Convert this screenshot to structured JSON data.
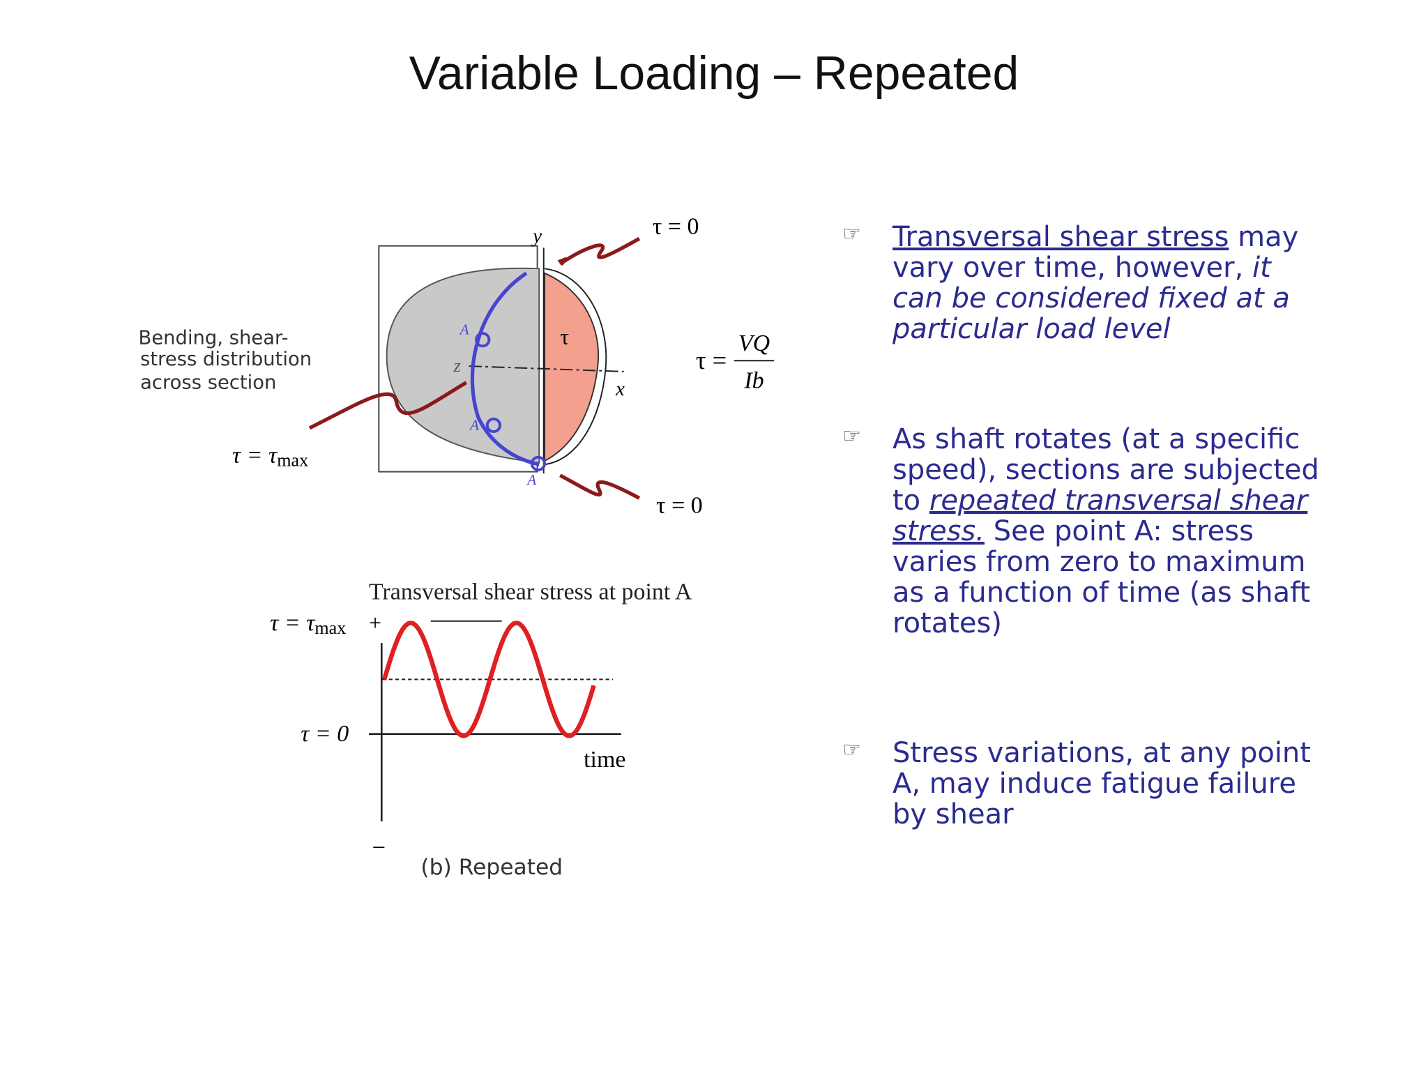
{
  "title": "Variable Loading – Repeated",
  "figure_top": {
    "y_axis": "y",
    "x_axis": "x",
    "z_axis": "z",
    "tau_inside": "τ",
    "tau_top": "τ = 0",
    "tau_bottom": "τ = 0",
    "caption_lines": [
      "Bending, shear-",
      "stress distribution",
      "across section"
    ],
    "tau_max": {
      "main": "τ = τ",
      "sub": "max"
    },
    "points": [
      "A",
      "A",
      "A"
    ],
    "formula": {
      "left": "τ =",
      "numerator": "VQ",
      "denominator": "Ib"
    }
  },
  "figure_bottom": {
    "title": "Transversal shear stress at point A",
    "tau_max": {
      "main": "τ = τ",
      "sub": "max"
    },
    "plus": "+",
    "tau_zero": "τ = 0",
    "time": "time",
    "minus": "–",
    "caption": "(b)  Repeated"
  },
  "bullets": [
    {
      "marker": "☞",
      "parts": [
        "Transversal shear stress",
        " may vary over time, however, ",
        "it can be considered fixed at a particular load level"
      ]
    },
    {
      "marker": "☞",
      "parts": [
        "As shaft rotates (at a specific speed), sections are subjected to ",
        "repeated transversal shear stress.",
        " See point A: stress varies from zero to maximum as a function of time (as shaft rotates)"
      ]
    },
    {
      "marker": "☞",
      "parts": [
        "Stress variations, at any point A, may induce fatigue failure by shear"
      ]
    }
  ]
}
